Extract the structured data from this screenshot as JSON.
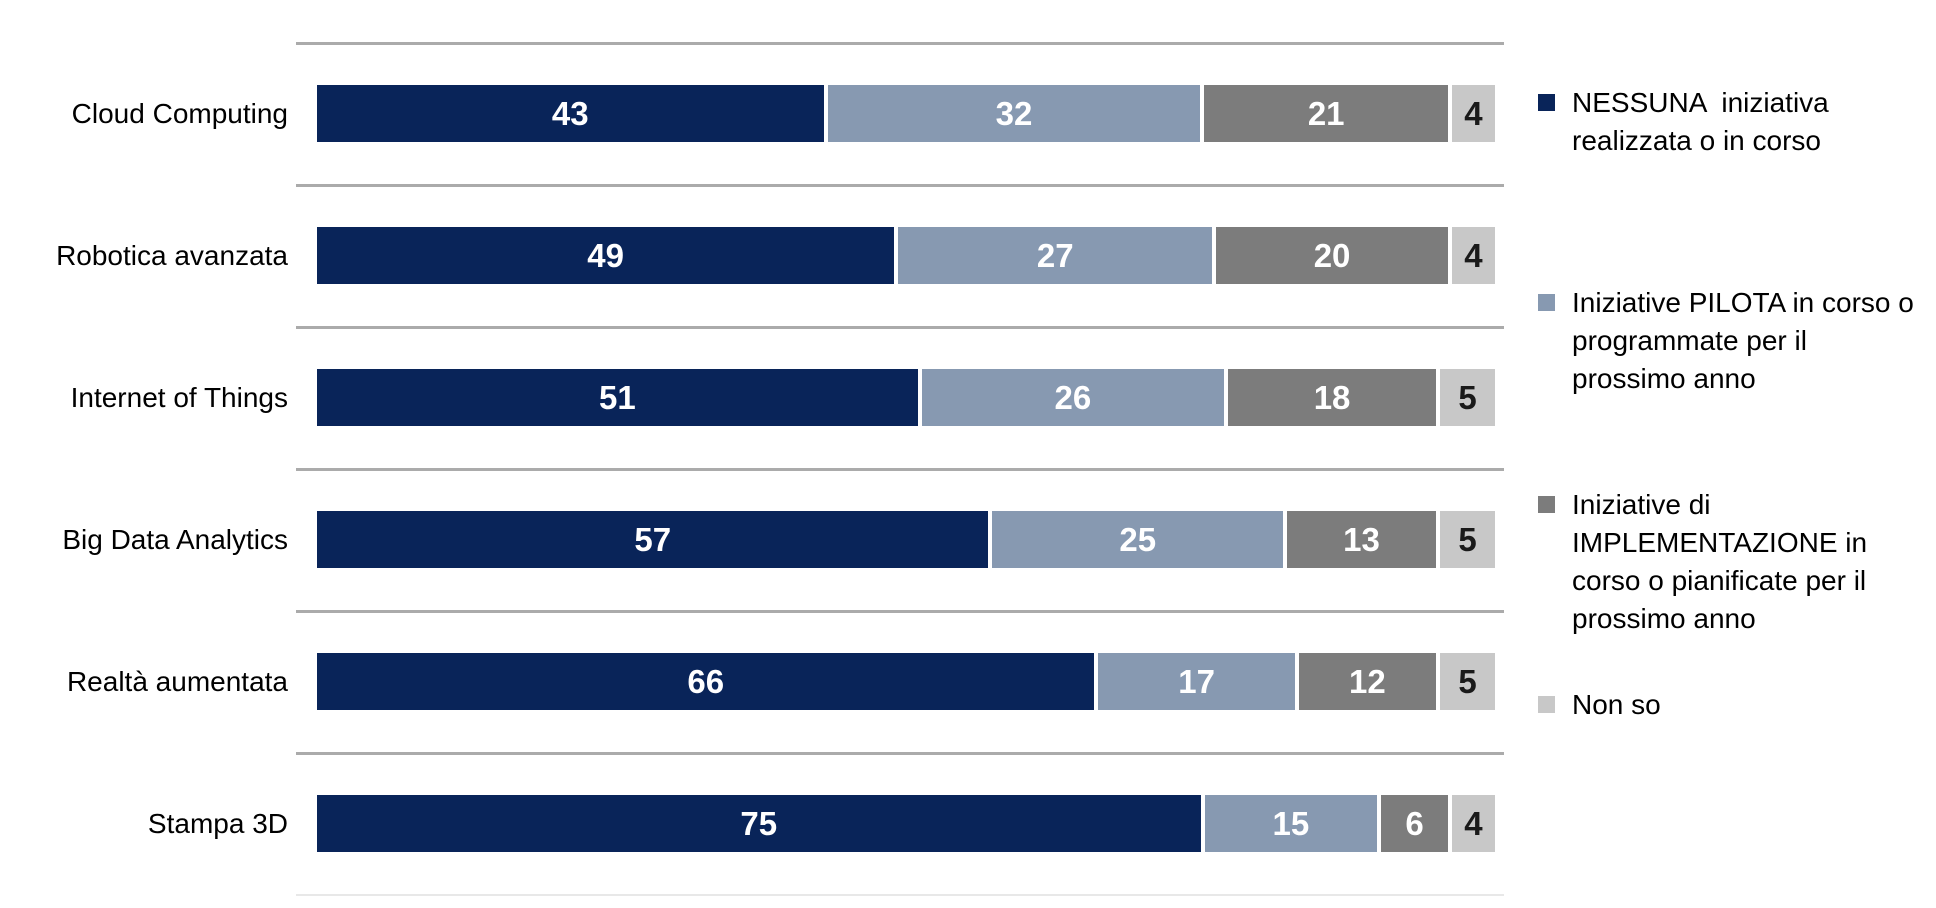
{
  "chart_data": {
    "type": "bar",
    "variant": "horizontal-stacked",
    "title": "",
    "xlabel": "",
    "ylabel": "",
    "xlim": [
      0,
      100
    ],
    "grid": true,
    "legend_position": "right",
    "categories": [
      "Cloud Computing",
      "Robotica avanzata",
      "Internet of Things",
      "Big Data Analytics",
      "Realtà aumentata",
      "Stampa 3D"
    ],
    "series": [
      {
        "name": "NESSUNA  iniziativa realizzata o in corso",
        "legend_lines": [
          "NESSUNA  iniziativa",
          "realizzata o in corso"
        ],
        "color": "#092459",
        "value_color": "#FFFFFF",
        "values": [
          43,
          49,
          51,
          57,
          66,
          75
        ]
      },
      {
        "name": "Iniziative PILOTA in corso o programmate per il prossimo anno",
        "legend_lines": [
          "Iniziative PILOTA in corso o",
          "programmate per il",
          "prossimo anno"
        ],
        "color": "#8799B1",
        "value_color": "#FFFFFF",
        "values": [
          32,
          27,
          26,
          25,
          17,
          15
        ]
      },
      {
        "name": "Iniziative di IMPLEMENTAZIONE in corso o pianificate per il prossimo anno",
        "legend_lines": [
          "Iniziative di",
          "IMPLEMENTAZIONE in",
          "corso o pianificate per il",
          "prossimo anno"
        ],
        "color": "#7C7C7C",
        "value_color": "#FFFFFF",
        "values": [
          21,
          20,
          18,
          13,
          12,
          6
        ]
      },
      {
        "name": "Non so",
        "legend_lines": [
          "Non so"
        ],
        "color": "#C8C8C8",
        "value_color": "#1A1A1A",
        "values": [
          4,
          4,
          5,
          5,
          5,
          4
        ]
      }
    ]
  },
  "style": {
    "background": "#FFFFFF",
    "gridline_color": "#ABABAB",
    "gridline_bottom_color": "#E8E8E8",
    "label_color": "#000000"
  }
}
